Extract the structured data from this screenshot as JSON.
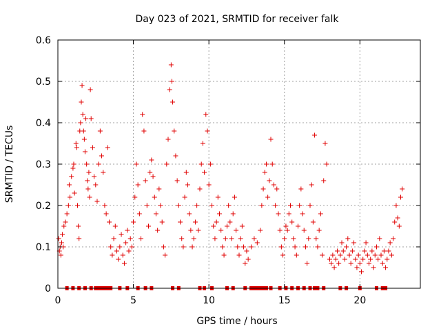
{
  "chart_data": {
    "type": "scatter",
    "title": "Day 023 of 2021, SRMTID for receiver falk",
    "xlabel": "GPS time / hours",
    "ylabel": "SRMTID / TECUs",
    "xlim": [
      0,
      24
    ],
    "ylim": [
      0,
      0.6
    ],
    "x_ticks": [
      0,
      5,
      10,
      15,
      20
    ],
    "y_ticks": [
      0,
      0.1,
      0.2,
      0.3,
      0.4,
      0.5,
      0.6
    ],
    "x_tick_labels": [
      "0",
      "5",
      "10",
      "15",
      "20"
    ],
    "y_tick_labels": [
      "0",
      "0.1",
      "0.2",
      "0.3",
      "0.4",
      "0.5",
      "0.6"
    ],
    "grid": true,
    "series": [
      {
        "name": "SRMTID",
        "color": "#e00000",
        "marker": "+",
        "points": [
          [
            0.05,
            0.12
          ],
          [
            0.1,
            0.09
          ],
          [
            0.15,
            0.1
          ],
          [
            0.2,
            0.08
          ],
          [
            0.25,
            0.11
          ],
          [
            0.3,
            0.13
          ],
          [
            0.35,
            0.1
          ],
          [
            0.4,
            0.15
          ],
          [
            0.5,
            0.16
          ],
          [
            0.6,
            0.18
          ],
          [
            0.7,
            0.2
          ],
          [
            0.75,
            0.25
          ],
          [
            0.8,
            0.22
          ],
          [
            0.9,
            0.27
          ],
          [
            1.0,
            0.29
          ],
          [
            1.05,
            0.3
          ],
          [
            1.1,
            0.23
          ],
          [
            1.2,
            0.35
          ],
          [
            1.25,
            0.34
          ],
          [
            1.3,
            0.2
          ],
          [
            1.35,
            0.15
          ],
          [
            1.4,
            0.12
          ],
          [
            1.45,
            0.38
          ],
          [
            1.5,
            0.4
          ],
          [
            1.55,
            0.45
          ],
          [
            1.6,
            0.49
          ],
          [
            1.65,
            0.42
          ],
          [
            1.7,
            0.38
          ],
          [
            1.75,
            0.36
          ],
          [
            1.8,
            0.33
          ],
          [
            1.85,
            0.41
          ],
          [
            1.9,
            0.3
          ],
          [
            1.95,
            0.26
          ],
          [
            2.0,
            0.24
          ],
          [
            2.05,
            0.28
          ],
          [
            2.1,
            0.22
          ],
          [
            2.15,
            0.48
          ],
          [
            2.2,
            0.41
          ],
          [
            2.3,
            0.34
          ],
          [
            2.4,
            0.27
          ],
          [
            2.5,
            0.25
          ],
          [
            2.6,
            0.21
          ],
          [
            2.7,
            0.3
          ],
          [
            2.8,
            0.38
          ],
          [
            2.9,
            0.32
          ],
          [
            3.0,
            0.28
          ],
          [
            3.1,
            0.2
          ],
          [
            3.2,
            0.18
          ],
          [
            3.3,
            0.34
          ],
          [
            3.4,
            0.16
          ],
          [
            3.5,
            0.1
          ],
          [
            3.6,
            0.08
          ],
          [
            3.7,
            0.12
          ],
          [
            3.8,
            0.15
          ],
          [
            3.9,
            0.09
          ],
          [
            4.0,
            0.07
          ],
          [
            4.1,
            0.1
          ],
          [
            4.2,
            0.13
          ],
          [
            4.3,
            0.08
          ],
          [
            4.4,
            0.06
          ],
          [
            4.5,
            0.11
          ],
          [
            4.6,
            0.14
          ],
          [
            4.7,
            0.09
          ],
          [
            4.8,
            0.12
          ],
          [
            4.9,
            0.1
          ],
          [
            5.0,
            0.16
          ],
          [
            5.1,
            0.22
          ],
          [
            5.2,
            0.3
          ],
          [
            5.3,
            0.25
          ],
          [
            5.4,
            0.18
          ],
          [
            5.5,
            0.12
          ],
          [
            5.6,
            0.42
          ],
          [
            5.7,
            0.38
          ],
          [
            5.8,
            0.26
          ],
          [
            5.9,
            0.2
          ],
          [
            6.0,
            0.15
          ],
          [
            6.1,
            0.28
          ],
          [
            6.2,
            0.31
          ],
          [
            6.3,
            0.27
          ],
          [
            6.4,
            0.22
          ],
          [
            6.5,
            0.18
          ],
          [
            6.6,
            0.14
          ],
          [
            6.7,
            0.24
          ],
          [
            6.8,
            0.2
          ],
          [
            6.9,
            0.16
          ],
          [
            7.0,
            0.1
          ],
          [
            7.1,
            0.08
          ],
          [
            7.2,
            0.3
          ],
          [
            7.3,
            0.36
          ],
          [
            7.4,
            0.48
          ],
          [
            7.5,
            0.54
          ],
          [
            7.55,
            0.5
          ],
          [
            7.6,
            0.45
          ],
          [
            7.7,
            0.38
          ],
          [
            7.8,
            0.32
          ],
          [
            7.9,
            0.26
          ],
          [
            8.0,
            0.2
          ],
          [
            8.1,
            0.16
          ],
          [
            8.2,
            0.12
          ],
          [
            8.3,
            0.1
          ],
          [
            8.4,
            0.22
          ],
          [
            8.5,
            0.28
          ],
          [
            8.6,
            0.25
          ],
          [
            8.7,
            0.18
          ],
          [
            8.8,
            0.14
          ],
          [
            8.9,
            0.1
          ],
          [
            9.0,
            0.12
          ],
          [
            9.1,
            0.16
          ],
          [
            9.2,
            0.2
          ],
          [
            9.3,
            0.14
          ],
          [
            9.4,
            0.24
          ],
          [
            9.5,
            0.3
          ],
          [
            9.6,
            0.35
          ],
          [
            9.7,
            0.28
          ],
          [
            9.8,
            0.42
          ],
          [
            9.9,
            0.38
          ],
          [
            10.0,
            0.25
          ],
          [
            10.1,
            0.3
          ],
          [
            10.2,
            0.2
          ],
          [
            10.3,
            0.15
          ],
          [
            10.4,
            0.12
          ],
          [
            10.5,
            0.16
          ],
          [
            10.6,
            0.22
          ],
          [
            10.7,
            0.18
          ],
          [
            10.8,
            0.14
          ],
          [
            10.9,
            0.1
          ],
          [
            11.0,
            0.08
          ],
          [
            11.1,
            0.12
          ],
          [
            11.2,
            0.15
          ],
          [
            11.3,
            0.2
          ],
          [
            11.4,
            0.16
          ],
          [
            11.5,
            0.12
          ],
          [
            11.6,
            0.18
          ],
          [
            11.7,
            0.22
          ],
          [
            11.8,
            0.14
          ],
          [
            11.9,
            0.1
          ],
          [
            12.0,
            0.08
          ],
          [
            12.1,
            0.12
          ],
          [
            12.2,
            0.15
          ],
          [
            12.3,
            0.1
          ],
          [
            12.4,
            0.06
          ],
          [
            12.5,
            0.09
          ],
          [
            12.6,
            0.07
          ],
          [
            12.8,
            0.1
          ],
          [
            13.0,
            0.12
          ],
          [
            13.2,
            0.11
          ],
          [
            13.4,
            0.14
          ],
          [
            13.5,
            0.2
          ],
          [
            13.6,
            0.24
          ],
          [
            13.7,
            0.28
          ],
          [
            13.8,
            0.3
          ],
          [
            13.9,
            0.22
          ],
          [
            14.0,
            0.26
          ],
          [
            14.1,
            0.36
          ],
          [
            14.2,
            0.3
          ],
          [
            14.3,
            0.25
          ],
          [
            14.4,
            0.2
          ],
          [
            14.5,
            0.24
          ],
          [
            14.6,
            0.18
          ],
          [
            14.7,
            0.14
          ],
          [
            14.8,
            0.1
          ],
          [
            14.9,
            0.08
          ],
          [
            15.0,
            0.12
          ],
          [
            15.1,
            0.15
          ],
          [
            15.2,
            0.14
          ],
          [
            15.3,
            0.18
          ],
          [
            15.4,
            0.2
          ],
          [
            15.5,
            0.16
          ],
          [
            15.6,
            0.12
          ],
          [
            15.7,
            0.1
          ],
          [
            15.8,
            0.08
          ],
          [
            15.9,
            0.15
          ],
          [
            16.0,
            0.2
          ],
          [
            16.1,
            0.24
          ],
          [
            16.2,
            0.18
          ],
          [
            16.3,
            0.14
          ],
          [
            16.4,
            0.1
          ],
          [
            16.5,
            0.06
          ],
          [
            16.6,
            0.12
          ],
          [
            16.7,
            0.2
          ],
          [
            16.8,
            0.25
          ],
          [
            16.9,
            0.16
          ],
          [
            17.0,
            0.37
          ],
          [
            17.1,
            0.12
          ],
          [
            17.2,
            0.1
          ],
          [
            17.3,
            0.14
          ],
          [
            17.4,
            0.18
          ],
          [
            17.5,
            0.08
          ],
          [
            17.6,
            0.26
          ],
          [
            17.7,
            0.35
          ],
          [
            17.8,
            0.3
          ],
          [
            18.0,
            0.07
          ],
          [
            18.1,
            0.06
          ],
          [
            18.2,
            0.08
          ],
          [
            18.3,
            0.05
          ],
          [
            18.4,
            0.07
          ],
          [
            18.5,
            0.09
          ],
          [
            18.6,
            0.06
          ],
          [
            18.7,
            0.08
          ],
          [
            18.8,
            0.11
          ],
          [
            18.9,
            0.09
          ],
          [
            19.0,
            0.07
          ],
          [
            19.1,
            0.1
          ],
          [
            19.2,
            0.12
          ],
          [
            19.3,
            0.08
          ],
          [
            19.4,
            0.06
          ],
          [
            19.5,
            0.09
          ],
          [
            19.6,
            0.11
          ],
          [
            19.7,
            0.07
          ],
          [
            19.8,
            0.05
          ],
          [
            19.9,
            0.08
          ],
          [
            20.0,
            0.06
          ],
          [
            20.1,
            0.04
          ],
          [
            20.2,
            0.07
          ],
          [
            20.3,
            0.09
          ],
          [
            20.4,
            0.11
          ],
          [
            20.5,
            0.08
          ],
          [
            20.6,
            0.06
          ],
          [
            20.7,
            0.07
          ],
          [
            20.8,
            0.09
          ],
          [
            20.9,
            0.05
          ],
          [
            21.0,
            0.08
          ],
          [
            21.1,
            0.1
          ],
          [
            21.2,
            0.07
          ],
          [
            21.3,
            0.12
          ],
          [
            21.4,
            0.08
          ],
          [
            21.5,
            0.06
          ],
          [
            21.6,
            0.09
          ],
          [
            21.7,
            0.05
          ],
          [
            21.8,
            0.07
          ],
          [
            21.9,
            0.09
          ],
          [
            22.0,
            0.11
          ],
          [
            22.1,
            0.08
          ],
          [
            22.2,
            0.12
          ],
          [
            22.3,
            0.16
          ],
          [
            22.4,
            0.2
          ],
          [
            22.5,
            0.17
          ],
          [
            22.6,
            0.15
          ],
          [
            22.7,
            0.22
          ],
          [
            22.8,
            0.24
          ]
        ],
        "zero_points": [
          0.6,
          1.0,
          1.4,
          1.8,
          2.2,
          2.5,
          2.7,
          2.9,
          3.1,
          3.3,
          3.5,
          4.1,
          4.6,
          5.3,
          5.8,
          6.2,
          7.6,
          8.0,
          9.4,
          9.7,
          10.2,
          11.2,
          11.6,
          12.4,
          12.8,
          13.0,
          13.2,
          13.4,
          13.6,
          13.8,
          14.1,
          14.7,
          15.1,
          15.5,
          15.9,
          16.3,
          16.7,
          17.0,
          17.2,
          17.6,
          18.7,
          19.1,
          20.0,
          21.1,
          21.5,
          21.7
        ]
      }
    ]
  }
}
